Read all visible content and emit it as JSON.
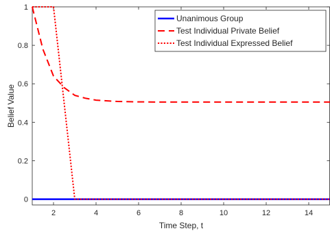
{
  "chart_data": {
    "type": "line",
    "title": "",
    "xlabel": "Time Step, t",
    "ylabel": "Belief Value",
    "xlim": [
      1,
      15
    ],
    "ylim": [
      -0.03,
      1.0
    ],
    "x_ticks": [
      2,
      4,
      6,
      8,
      10,
      12,
      14
    ],
    "y_ticks": [
      0,
      0.2,
      0.4,
      0.6,
      0.8,
      1
    ],
    "y_tick_labels": [
      "0",
      "0.2",
      "0.4",
      "0.6",
      "0.8",
      "1"
    ],
    "grid": false,
    "legend_position": "top-right",
    "series": [
      {
        "name": "Unanimous Group",
        "color": "#0000ff",
        "line_style": "solid",
        "x": [
          1,
          2,
          3,
          4,
          5,
          6,
          7,
          8,
          9,
          10,
          11,
          12,
          13,
          14,
          15
        ],
        "y": [
          0,
          0,
          0,
          0,
          0,
          0,
          0,
          0,
          0,
          0,
          0,
          0,
          0,
          0,
          0
        ]
      },
      {
        "name": "Test Individual Private Belief",
        "color": "#ff0000",
        "line_style": "dashed",
        "x": [
          1,
          1.5,
          2,
          2.5,
          3,
          3.5,
          4,
          5,
          6,
          7,
          8,
          9,
          10,
          11,
          12,
          13,
          14,
          15
        ],
        "y": [
          1.0,
          0.78,
          0.64,
          0.58,
          0.54,
          0.525,
          0.515,
          0.508,
          0.506,
          0.505,
          0.505,
          0.505,
          0.505,
          0.505,
          0.505,
          0.505,
          0.505,
          0.505
        ]
      },
      {
        "name": "Test Individual Expressed Belief",
        "color": "#ff0000",
        "line_style": "dotted",
        "x": [
          1,
          2,
          3,
          4,
          5,
          6,
          7,
          8,
          9,
          10,
          11,
          12,
          13,
          14,
          15
        ],
        "y": [
          1,
          1,
          0,
          0,
          0,
          0,
          0,
          0,
          0,
          0,
          0,
          0,
          0,
          0,
          0
        ]
      }
    ]
  }
}
